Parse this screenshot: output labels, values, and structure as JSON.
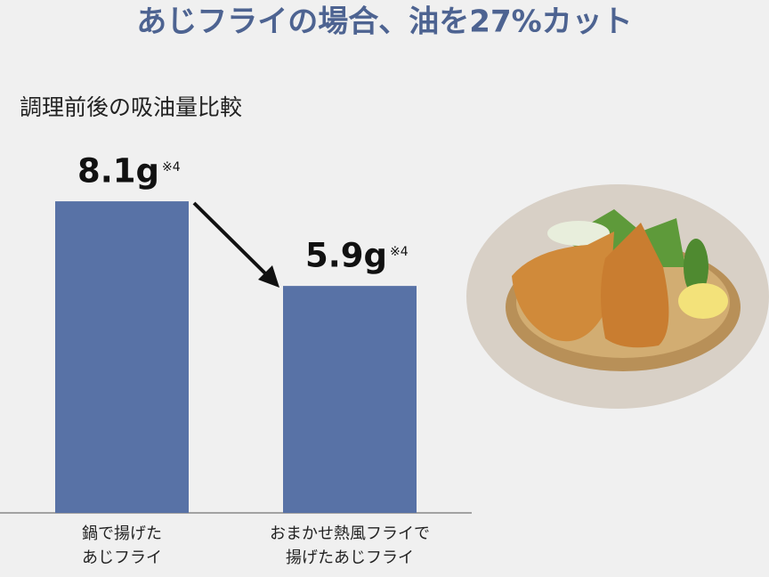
{
  "chart_data": {
    "type": "bar",
    "title": "あじフライの場合、油を27%カット",
    "subtitle": "調理前後の吸油量比較",
    "categories": [
      [
        "鍋で揚げた",
        "あじフライ"
      ],
      [
        "おまかせ熱風フライで",
        "揚げたあじフライ"
      ]
    ],
    "values": [
      8.1,
      5.9
    ],
    "value_labels": [
      "8.1g",
      "5.9g"
    ],
    "value_label_notes": [
      "※4",
      "※4"
    ],
    "color": "#5872a6",
    "ylim": [
      0,
      10
    ]
  }
}
